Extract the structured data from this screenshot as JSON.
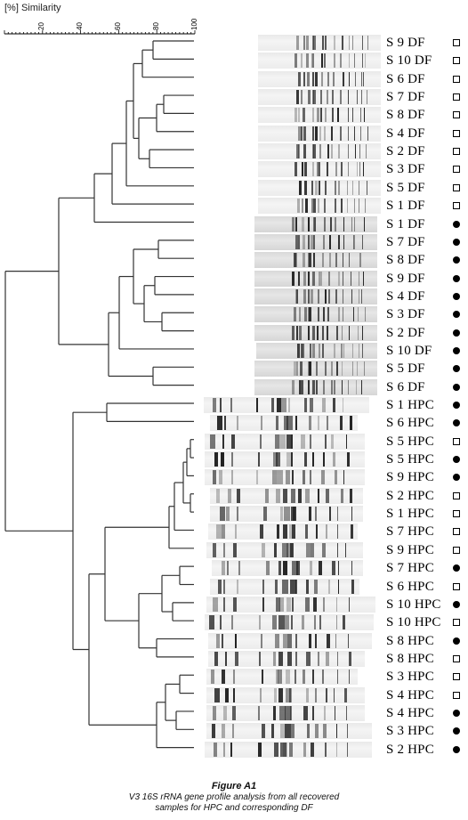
{
  "scale": {
    "title": "[%] Similarity",
    "ticks": [
      "20",
      "40",
      "60",
      "80",
      "100"
    ]
  },
  "legend_markers": {
    "open": "open-square",
    "filled": "filled-circle"
  },
  "samples": [
    {
      "label": "S 9 DF",
      "marker": "open"
    },
    {
      "label": "S 10 DF",
      "marker": "open"
    },
    {
      "label": "S 6 DF",
      "marker": "open"
    },
    {
      "label": "S 7 DF",
      "marker": "open"
    },
    {
      "label": "S 8 DF",
      "marker": "open"
    },
    {
      "label": "S 4 DF",
      "marker": "open"
    },
    {
      "label": "S 2 DF",
      "marker": "open"
    },
    {
      "label": "S 3 DF",
      "marker": "open"
    },
    {
      "label": "S 5 DF",
      "marker": "open"
    },
    {
      "label": "S 1 DF",
      "marker": "open"
    },
    {
      "label": "S 1 DF",
      "marker": "filled"
    },
    {
      "label": "S 7 DF",
      "marker": "filled"
    },
    {
      "label": "S 8 DF",
      "marker": "filled"
    },
    {
      "label": "S 9 DF",
      "marker": "filled"
    },
    {
      "label": "S 4 DF",
      "marker": "filled"
    },
    {
      "label": "S 3 DF",
      "marker": "filled"
    },
    {
      "label": "S 2 DF",
      "marker": "filled"
    },
    {
      "label": "S 10 DF",
      "marker": "filled"
    },
    {
      "label": "S 5  DF",
      "marker": "filled"
    },
    {
      "label": "S 6  DF",
      "marker": "filled"
    },
    {
      "label": "S 1 HPC",
      "marker": "filled"
    },
    {
      "label": "S 6 HPC",
      "marker": "filled"
    },
    {
      "label": "S 5 HPC",
      "marker": "open"
    },
    {
      "label": "S 5 HPC",
      "marker": "filled"
    },
    {
      "label": "S 9 HPC",
      "marker": "filled"
    },
    {
      "label": "S 2 HPC",
      "marker": "open"
    },
    {
      "label": "S 1 HPC",
      "marker": "open"
    },
    {
      "label": "S 7 HPC",
      "marker": "open"
    },
    {
      "label": "S 9 HPC",
      "marker": "open"
    },
    {
      "label": "S 7 HPC",
      "marker": "filled"
    },
    {
      "label": "S 6 HPC",
      "marker": "open"
    },
    {
      "label": "S 10 HPC",
      "marker": "filled"
    },
    {
      "label": "S 10 HPC",
      "marker": "open"
    },
    {
      "label": "S 8 HPC",
      "marker": "filled"
    },
    {
      "label": "S 8 HPC",
      "marker": "open"
    },
    {
      "label": "S 3 HPC",
      "marker": "open"
    },
    {
      "label": "S 4 HPC",
      "marker": "open"
    },
    {
      "label": "S 4 HPC",
      "marker": "filled"
    },
    {
      "label": "S 3 HPC",
      "marker": "filled"
    },
    {
      "label": "S 2 HPC",
      "marker": "filled"
    }
  ],
  "caption": {
    "title": "Figure A1",
    "body": "V3 16S rRNA gene profile analysis from all recovered samples for HPC and corresponding DF"
  }
}
